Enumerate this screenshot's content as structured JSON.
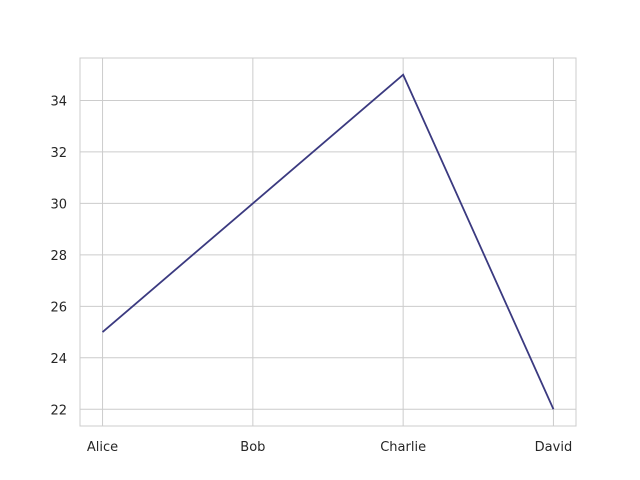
{
  "chart_data": {
    "type": "line",
    "title": "",
    "xlabel": "",
    "ylabel": "",
    "categories": [
      "Alice",
      "Bob",
      "Charlie",
      "David"
    ],
    "series": [
      {
        "values": [
          25,
          30,
          35,
          22
        ]
      }
    ],
    "ylim": [
      21.35,
      35.65
    ],
    "yticks": [
      22,
      24,
      26,
      28,
      30,
      32,
      34
    ],
    "grid": true,
    "legend": "none",
    "colors": {
      "line": "#3b3a80",
      "grid": "#cccccc",
      "spine": "#cccccc",
      "text": "#262626"
    }
  }
}
